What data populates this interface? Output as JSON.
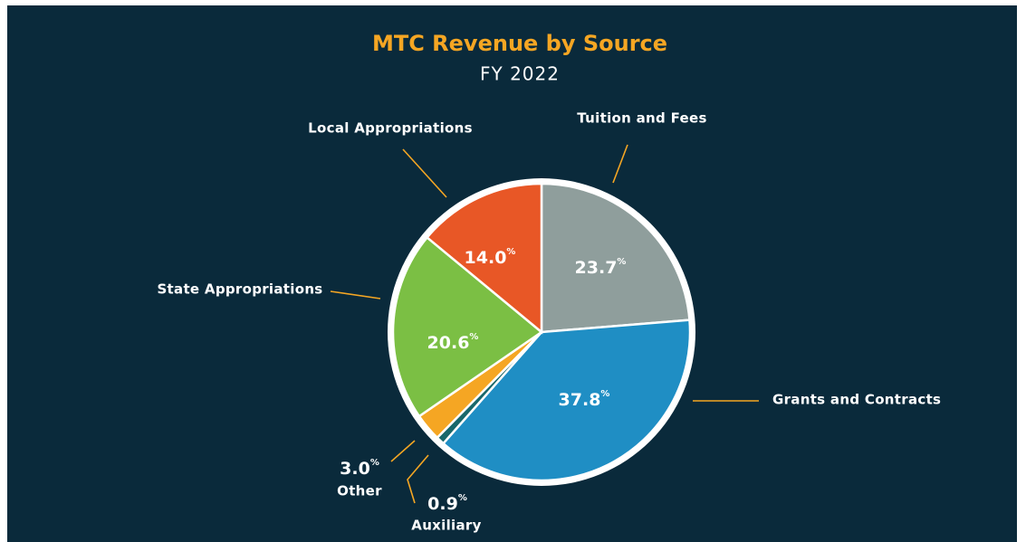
{
  "chart_data": {
    "type": "pie",
    "title": "MTC Revenue by Source",
    "subtitle": "FY 2022",
    "categories": [
      "Tuition and Fees",
      "Grants and Contracts",
      "Auxiliary",
      "Other",
      "State Appropriations",
      "Local Appropriations"
    ],
    "values": [
      23.7,
      37.8,
      0.9,
      3.0,
      20.6,
      14.0
    ],
    "value_labels": [
      "23.7%",
      "37.8%",
      "0.9%",
      "3.0%",
      "20.6%",
      "14.0%"
    ],
    "colors": [
      "#8f9e9c",
      "#1f8ec4",
      "#17676a",
      "#f5a623",
      "#7bbf44",
      "#e85726"
    ]
  }
}
